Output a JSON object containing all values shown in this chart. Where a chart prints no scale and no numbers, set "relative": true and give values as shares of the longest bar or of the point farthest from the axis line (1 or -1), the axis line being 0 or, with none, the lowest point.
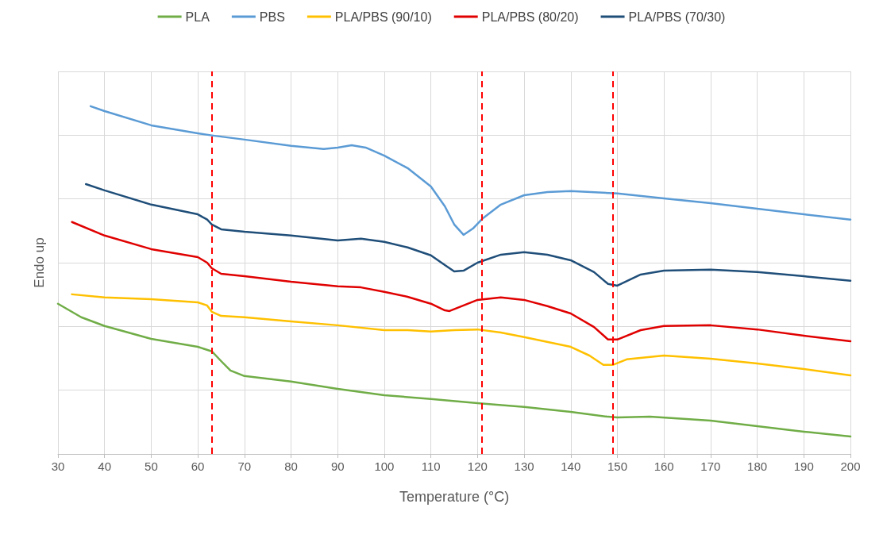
{
  "chart_data": {
    "type": "line",
    "relative": true,
    "xlabel": "Temperature (°C)",
    "ylabel": "Endo up",
    "xlim": [
      30,
      200
    ],
    "xticks": [
      30,
      40,
      50,
      60,
      70,
      80,
      90,
      100,
      110,
      120,
      130,
      140,
      150,
      160,
      170,
      180,
      190,
      200
    ],
    "grid": true,
    "legend": "top",
    "marker": "none",
    "line_style": "solid",
    "ref_lines": [
      {
        "axis": "x",
        "value": 63,
        "color": "#ff0000",
        "line_style": "dashed"
      },
      {
        "axis": "x",
        "value": 121,
        "color": "#ff0000",
        "line_style": "dashed"
      },
      {
        "axis": "x",
        "value": 149,
        "color": "#ff0000",
        "line_style": "dashed"
      }
    ],
    "series": [
      {
        "name": "PLA",
        "color": "#70ad47",
        "x": [
          30,
          35,
          40,
          50,
          60,
          63,
          65,
          67,
          70,
          80,
          90,
          100,
          110,
          120,
          130,
          140,
          148,
          150,
          157,
          170,
          180,
          190,
          200
        ],
        "values": [
          0.432,
          0.393,
          0.368,
          0.331,
          0.308,
          0.295,
          0.267,
          0.24,
          0.224,
          0.208,
          0.187,
          0.169,
          0.158,
          0.146,
          0.135,
          0.121,
          0.107,
          0.105,
          0.107,
          0.096,
          0.08,
          0.064,
          0.05
        ]
      },
      {
        "name": "PBS",
        "color": "#5b9bd5",
        "x": [
          37,
          40,
          50,
          60,
          63,
          70,
          80,
          87,
          90,
          93,
          96,
          100,
          105,
          110,
          113,
          115,
          117,
          119,
          121,
          125,
          130,
          135,
          140,
          150,
          160,
          170,
          180,
          190,
          200
        ],
        "values": [
          1,
          0.986,
          0.945,
          0.922,
          0.916,
          0.904,
          0.886,
          0.877,
          0.881,
          0.888,
          0.881,
          0.858,
          0.822,
          0.769,
          0.712,
          0.66,
          0.63,
          0.648,
          0.676,
          0.717,
          0.744,
          0.753,
          0.756,
          0.749,
          0.735,
          0.721,
          0.705,
          0.689,
          0.674
        ]
      },
      {
        "name": "PLA/PBS (90/10)",
        "color": "#ffc000",
        "x": [
          33,
          40,
          50,
          60,
          62,
          63,
          65,
          70,
          80,
          90,
          100,
          105,
          110,
          115,
          120,
          125,
          130,
          140,
          144,
          147,
          149,
          152,
          160,
          170,
          180,
          190,
          200
        ],
        "values": [
          0.459,
          0.45,
          0.445,
          0.436,
          0.427,
          0.409,
          0.397,
          0.393,
          0.381,
          0.37,
          0.356,
          0.356,
          0.352,
          0.356,
          0.358,
          0.349,
          0.336,
          0.308,
          0.283,
          0.256,
          0.256,
          0.272,
          0.283,
          0.274,
          0.26,
          0.244,
          0.226
        ]
      },
      {
        "name": "PLA/PBS (80/20)",
        "color": "#e00000",
        "x": [
          33,
          40,
          50,
          60,
          62,
          63,
          65,
          70,
          80,
          90,
          95,
          100,
          105,
          110,
          113,
          114,
          117,
          120,
          125,
          130,
          135,
          140,
          145,
          148,
          150,
          155,
          160,
          170,
          180,
          190,
          200
        ],
        "values": [
          0.667,
          0.628,
          0.589,
          0.566,
          0.55,
          0.534,
          0.518,
          0.511,
          0.495,
          0.482,
          0.479,
          0.466,
          0.452,
          0.432,
          0.413,
          0.411,
          0.427,
          0.443,
          0.45,
          0.443,
          0.425,
          0.404,
          0.365,
          0.329,
          0.329,
          0.356,
          0.368,
          0.37,
          0.358,
          0.34,
          0.324
        ]
      },
      {
        "name": "PLA/PBS (70/30)",
        "color": "#1f4e79",
        "x": [
          36,
          40,
          50,
          60,
          62,
          63,
          65,
          70,
          80,
          90,
          95,
          100,
          105,
          110,
          113,
          115,
          117,
          120,
          125,
          130,
          135,
          140,
          145,
          148,
          150,
          155,
          160,
          170,
          180,
          190,
          200
        ],
        "values": [
          0.776,
          0.758,
          0.717,
          0.689,
          0.674,
          0.66,
          0.646,
          0.639,
          0.628,
          0.614,
          0.619,
          0.61,
          0.594,
          0.571,
          0.543,
          0.525,
          0.527,
          0.55,
          0.573,
          0.58,
          0.573,
          0.557,
          0.523,
          0.489,
          0.484,
          0.516,
          0.527,
          0.53,
          0.523,
          0.511,
          0.498
        ]
      }
    ]
  }
}
